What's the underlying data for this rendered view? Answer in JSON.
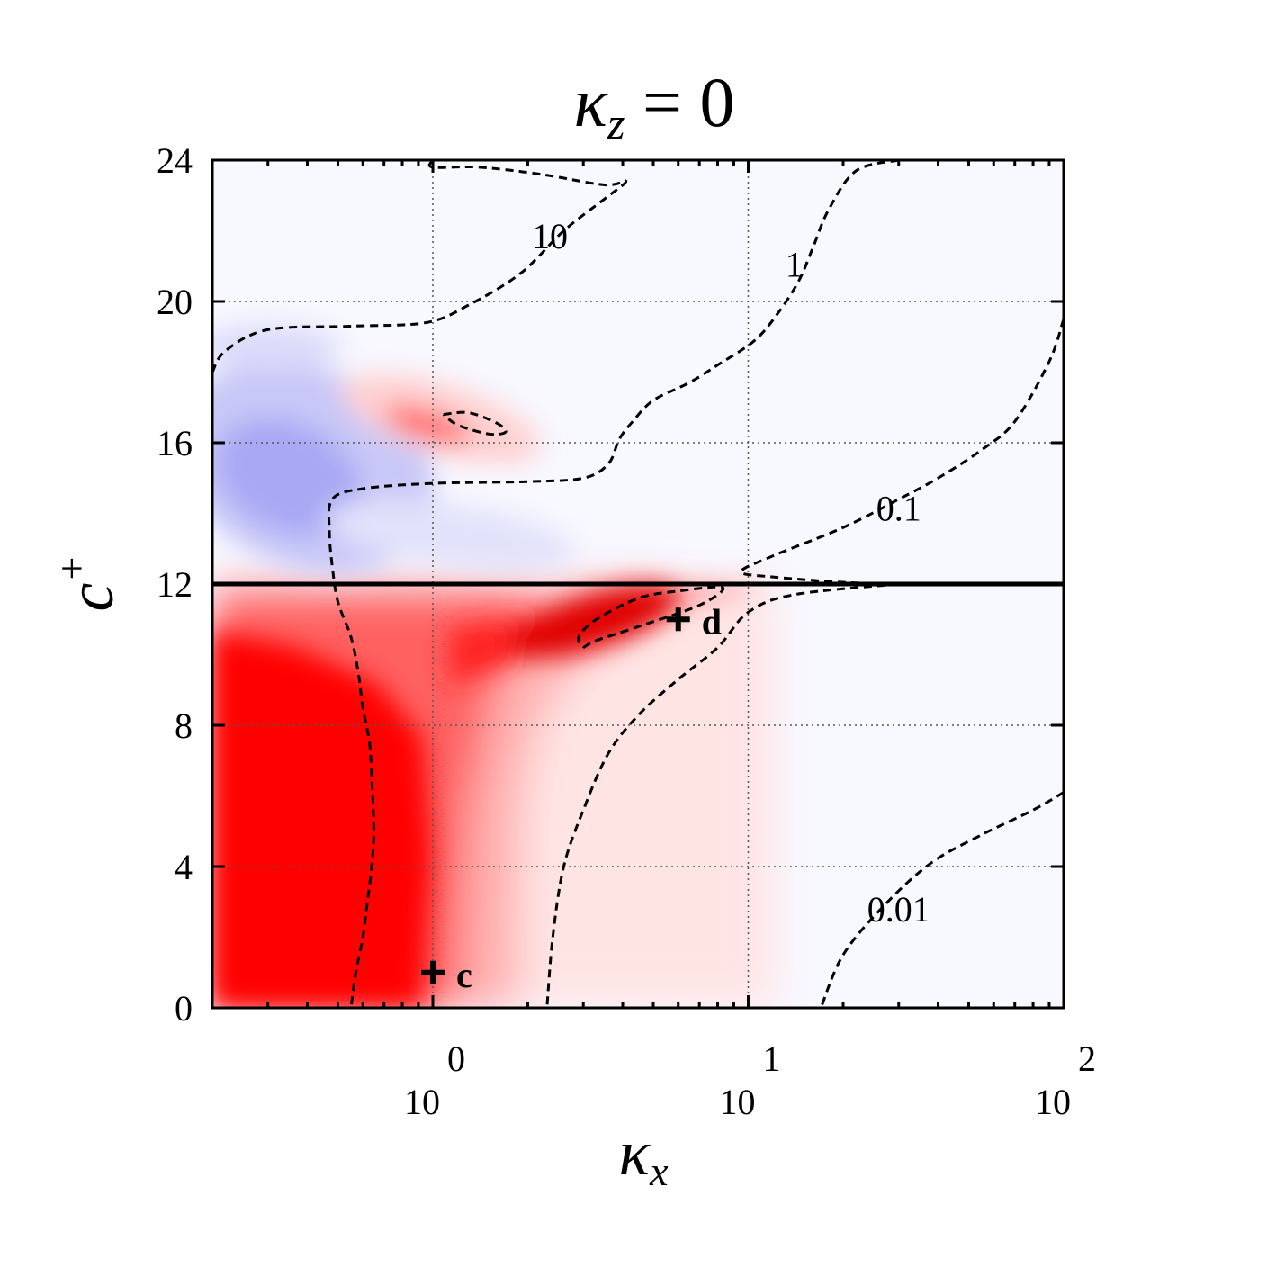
{
  "chart_data": {
    "type": "heatmap",
    "title": {
      "base": "κ",
      "sub": "z",
      "rest": " = 0"
    },
    "xlabel": {
      "base": "κ",
      "sub": "x"
    },
    "ylabel": {
      "base": "c",
      "sup": "+"
    },
    "x_scale": "log",
    "xlim": [
      0.2,
      100
    ],
    "ylim": [
      0,
      24
    ],
    "x_ticks": [
      {
        "value": 1,
        "base": "10",
        "exp": "0"
      },
      {
        "value": 10,
        "base": "10",
        "exp": "1"
      },
      {
        "value": 100,
        "base": "10",
        "exp": "2"
      }
    ],
    "y_ticks": [
      {
        "value": 0,
        "label": "0"
      },
      {
        "value": 4,
        "label": "4"
      },
      {
        "value": 8,
        "label": "8"
      },
      {
        "value": 12,
        "label": "12"
      },
      {
        "value": 16,
        "label": "16"
      },
      {
        "value": 20,
        "label": "20"
      },
      {
        "value": 24,
        "label": "24"
      }
    ],
    "grid": true,
    "colormap": {
      "positive": "#ff0000",
      "zero": "#f8f8ff",
      "negative": "#9a9af2"
    },
    "critical_line": {
      "y": 12
    },
    "contours": [
      {
        "label": "10",
        "label_at": [
          2.35,
          21.5
        ],
        "points": [
          [
            0.2,
            18
          ],
          [
            0.22,
            18.6
          ],
          [
            0.3,
            19.2
          ],
          [
            0.55,
            19.3
          ],
          [
            0.95,
            19.4
          ],
          [
            1.3,
            19.9
          ],
          [
            1.9,
            20.8
          ],
          [
            2.6,
            22
          ],
          [
            3.5,
            22.9
          ],
          [
            4.1,
            23.4
          ],
          [
            3.5,
            23.3
          ],
          [
            2.2,
            23.6
          ],
          [
            1.4,
            23.8
          ],
          [
            1,
            23.8
          ],
          [
            1,
            24
          ]
        ]
      },
      {
        "label": "",
        "label_at": null,
        "points": [
          [
            0.2,
            24
          ],
          [
            3,
            24
          ],
          [
            8,
            24
          ]
        ]
      },
      {
        "label": "1",
        "label_at": [
          14,
          20.7
        ],
        "points": [
          [
            30,
            24
          ],
          [
            22,
            23.7
          ],
          [
            18,
            22.6
          ],
          [
            16,
            21.5
          ],
          [
            14.5,
            20.6
          ],
          [
            12.5,
            19.7
          ],
          [
            10.5,
            18.9
          ],
          [
            8,
            18.2
          ],
          [
            6.5,
            17.7
          ],
          [
            5,
            17.2
          ],
          [
            4.3,
            16.6
          ],
          [
            3.9,
            16.1
          ],
          [
            3.6,
            15.4
          ],
          [
            3,
            15
          ],
          [
            2,
            14.9
          ],
          [
            1,
            14.85
          ],
          [
            0.6,
            14.7
          ],
          [
            0.48,
            14.4
          ],
          [
            0.47,
            13.5
          ],
          [
            0.48,
            12.5
          ],
          [
            0.5,
            11.5
          ],
          [
            0.55,
            10.5
          ],
          [
            0.58,
            9.5
          ],
          [
            0.6,
            8.5
          ],
          [
            0.63,
            7.5
          ],
          [
            0.64,
            6.5
          ],
          [
            0.65,
            5
          ],
          [
            0.64,
            4
          ],
          [
            0.62,
            3
          ],
          [
            0.6,
            2
          ],
          [
            0.57,
            1
          ],
          [
            0.55,
            0
          ]
        ]
      },
      {
        "label": "0.1",
        "label_at": [
          30,
          13.8
        ],
        "points": [
          [
            100,
            19.5
          ],
          [
            90,
            18.3
          ],
          [
            70,
            16.6
          ],
          [
            55,
            15.8
          ],
          [
            40,
            15
          ],
          [
            30,
            14.4
          ],
          [
            20,
            13.6
          ],
          [
            12,
            12.8
          ],
          [
            9.5,
            12.35
          ],
          [
            12,
            12.2
          ],
          [
            20,
            12.05
          ],
          [
            30,
            12
          ]
        ]
      },
      {
        "label": "",
        "label_at": null,
        "points": [
          [
            30,
            12
          ],
          [
            14,
            11.7
          ],
          [
            10,
            11.2
          ],
          [
            8,
            10.2
          ],
          [
            6,
            9.3
          ],
          [
            4.5,
            8.3
          ],
          [
            3.6,
            7.2
          ],
          [
            3,
            5.6
          ],
          [
            2.6,
            4
          ],
          [
            2.4,
            2
          ],
          [
            2.3,
            0
          ]
        ]
      },
      {
        "label": "0.01",
        "label_at": [
          30,
          2.45
        ],
        "points": [
          [
            100,
            6.1
          ],
          [
            80,
            5.6
          ],
          [
            55,
            4.9
          ],
          [
            38,
            4.1
          ],
          [
            27,
            2.9
          ],
          [
            20,
            1.5
          ],
          [
            17,
            0
          ]
        ]
      },
      {
        "label": "",
        "label_at": null,
        "points": [
          [
            1.08,
            16.8
          ],
          [
            1.3,
            16.85
          ],
          [
            1.6,
            16.55
          ],
          [
            1.7,
            16.3
          ],
          [
            1.5,
            16.25
          ],
          [
            1.2,
            16.5
          ],
          [
            1.08,
            16.8
          ]
        ]
      },
      {
        "label": "",
        "label_at": null,
        "points": [
          [
            3,
            10.2
          ],
          [
            3.3,
            10.4
          ],
          [
            4.5,
            10.8
          ],
          [
            7,
            11.4
          ],
          [
            8.3,
            11.9
          ],
          [
            6,
            11.8
          ],
          [
            4.5,
            11.6
          ],
          [
            3.3,
            11
          ],
          [
            2.9,
            10.5
          ],
          [
            3,
            10.2
          ]
        ]
      }
    ],
    "markers": [
      {
        "label": "c",
        "x": 1,
        "y": 1
      },
      {
        "label": "d",
        "x": 6,
        "y": 11
      }
    ]
  }
}
